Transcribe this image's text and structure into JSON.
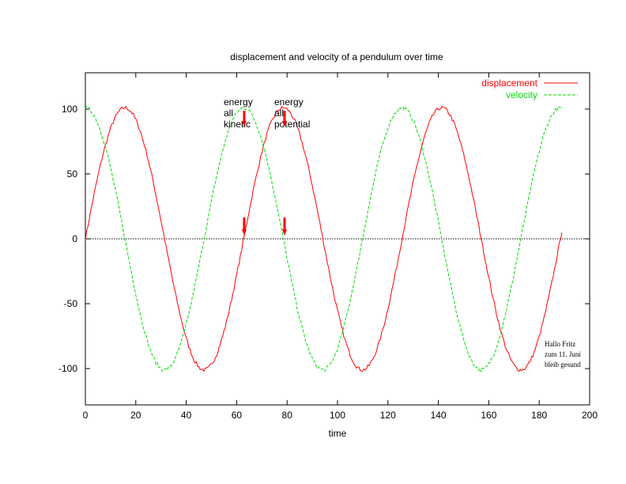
{
  "chart_data": {
    "type": "line",
    "title": "displacement and velocity of a pendulum over time",
    "xlabel": "time",
    "ylabel": "",
    "xlim": [
      0,
      200
    ],
    "ylim": [
      -128,
      128
    ],
    "xticks": [
      0,
      20,
      40,
      60,
      80,
      100,
      120,
      140,
      160,
      180,
      200
    ],
    "yticks": [
      -100,
      -50,
      0,
      50,
      100
    ],
    "zero_line": true,
    "legend_position": "top-right",
    "series": [
      {
        "name": "displacement",
        "color": "#ff0000",
        "style": "solid",
        "amplitude": 101,
        "period": 62.8,
        "phase": "sine",
        "x_range": [
          0,
          189
        ],
        "points": [
          [
            0,
            0
          ],
          [
            16,
            101
          ],
          [
            31,
            0
          ],
          [
            47,
            -101
          ],
          [
            63,
            0
          ],
          [
            78,
            101
          ],
          [
            94,
            0
          ],
          [
            110,
            -101
          ],
          [
            126,
            0
          ],
          [
            141,
            101
          ],
          [
            157,
            0
          ],
          [
            173,
            -101
          ],
          [
            189,
            7
          ]
        ]
      },
      {
        "name": "velocity",
        "color": "#00dd00",
        "style": "dashed",
        "amplitude": 101,
        "period": 62.8,
        "phase": "cosine",
        "x_range": [
          0,
          189
        ],
        "points": [
          [
            0,
            101
          ],
          [
            16,
            0
          ],
          [
            31,
            -101
          ],
          [
            47,
            0
          ],
          [
            63,
            101
          ],
          [
            78,
            0
          ],
          [
            94,
            -101
          ],
          [
            110,
            0
          ],
          [
            126,
            101
          ],
          [
            141,
            0
          ],
          [
            157,
            -101
          ],
          [
            173,
            0
          ],
          [
            189,
            101
          ]
        ]
      }
    ],
    "annotations": [
      {
        "lines": [
          "energy",
          "all",
          "kinetic"
        ],
        "arrow_x": 63
      },
      {
        "lines": [
          "energy",
          "all",
          "potential"
        ],
        "arrow_x": 79
      }
    ],
    "note": [
      "Hallo Fritz",
      "zum 11. Juni",
      "bleib gesund"
    ]
  }
}
